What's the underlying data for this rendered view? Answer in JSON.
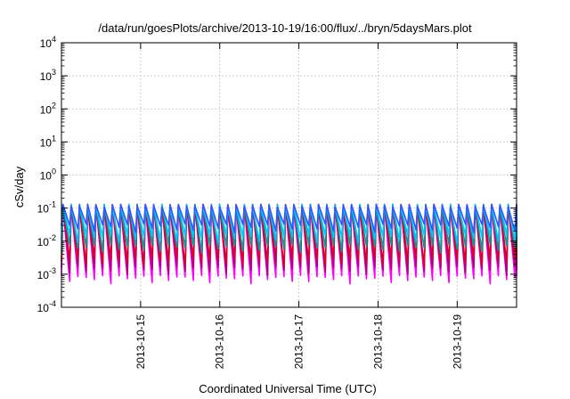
{
  "chart_data": {
    "type": "line",
    "title": "/data/run/goesPlots/archive/2013-10-19/16:00/flux/../bryn/5daysMars.plot",
    "xlabel": "Coordinated Universal Time (UTC)",
    "ylabel": "cSv/day",
    "y_scale": "log",
    "ylim": [
      0.0001,
      10000
    ],
    "xlim": [
      "2013-10-14 00:00",
      "2013-10-19 18:00"
    ],
    "grid": true,
    "legend": "none",
    "y_tick_exponents": [
      -4,
      -3,
      -2,
      -1,
      0,
      1,
      2,
      3,
      4
    ],
    "y_tick_base": "10",
    "x_tick_labels": [
      "2013-10-15",
      "2013-10-16",
      "2013-10-17",
      "2013-10-18",
      "2013-10-19"
    ],
    "x_tick_times": [
      "2013-10-15 00:00",
      "2013-10-16 00:00",
      "2013-10-17 00:00",
      "2013-10-18 00:00",
      "2013-10-19 00:00"
    ],
    "series_pattern": {
      "period_hours": 2.5,
      "peak": 0.13,
      "trough_min": 0.0007
    },
    "series": [
      {
        "color": "#ff00ff",
        "trough": 0.0007
      },
      {
        "color": "#b00080",
        "trough": 0.0013
      },
      {
        "color": "#dd0022",
        "trough": 0.0024
      },
      {
        "color": "#00a0a0",
        "trough": 0.006
      },
      {
        "color": "#00c8ff",
        "trough": 0.012
      },
      {
        "color": "#3355ff",
        "trough": 0.025
      }
    ]
  }
}
